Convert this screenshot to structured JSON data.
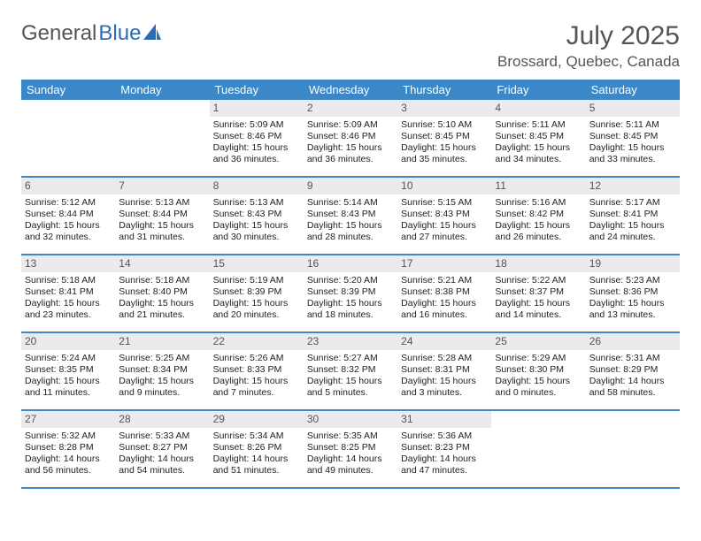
{
  "logo": {
    "text1": "General",
    "text2": "Blue"
  },
  "title": "July 2025",
  "location": "Brossard, Quebec, Canada",
  "colors": {
    "header_bg": "#3b87c8",
    "daynum_bg": "#ebebeb",
    "text": "#555555"
  },
  "weekdays": [
    "Sunday",
    "Monday",
    "Tuesday",
    "Wednesday",
    "Thursday",
    "Friday",
    "Saturday"
  ],
  "weeks": [
    [
      {
        "n": "",
        "sr": "",
        "ss": "",
        "dl": ""
      },
      {
        "n": "",
        "sr": "",
        "ss": "",
        "dl": ""
      },
      {
        "n": "1",
        "sr": "5:09 AM",
        "ss": "8:46 PM",
        "dl": "15 hours and 36 minutes."
      },
      {
        "n": "2",
        "sr": "5:09 AM",
        "ss": "8:46 PM",
        "dl": "15 hours and 36 minutes."
      },
      {
        "n": "3",
        "sr": "5:10 AM",
        "ss": "8:45 PM",
        "dl": "15 hours and 35 minutes."
      },
      {
        "n": "4",
        "sr": "5:11 AM",
        "ss": "8:45 PM",
        "dl": "15 hours and 34 minutes."
      },
      {
        "n": "5",
        "sr": "5:11 AM",
        "ss": "8:45 PM",
        "dl": "15 hours and 33 minutes."
      }
    ],
    [
      {
        "n": "6",
        "sr": "5:12 AM",
        "ss": "8:44 PM",
        "dl": "15 hours and 32 minutes."
      },
      {
        "n": "7",
        "sr": "5:13 AM",
        "ss": "8:44 PM",
        "dl": "15 hours and 31 minutes."
      },
      {
        "n": "8",
        "sr": "5:13 AM",
        "ss": "8:43 PM",
        "dl": "15 hours and 30 minutes."
      },
      {
        "n": "9",
        "sr": "5:14 AM",
        "ss": "8:43 PM",
        "dl": "15 hours and 28 minutes."
      },
      {
        "n": "10",
        "sr": "5:15 AM",
        "ss": "8:43 PM",
        "dl": "15 hours and 27 minutes."
      },
      {
        "n": "11",
        "sr": "5:16 AM",
        "ss": "8:42 PM",
        "dl": "15 hours and 26 minutes."
      },
      {
        "n": "12",
        "sr": "5:17 AM",
        "ss": "8:41 PM",
        "dl": "15 hours and 24 minutes."
      }
    ],
    [
      {
        "n": "13",
        "sr": "5:18 AM",
        "ss": "8:41 PM",
        "dl": "15 hours and 23 minutes."
      },
      {
        "n": "14",
        "sr": "5:18 AM",
        "ss": "8:40 PM",
        "dl": "15 hours and 21 minutes."
      },
      {
        "n": "15",
        "sr": "5:19 AM",
        "ss": "8:39 PM",
        "dl": "15 hours and 20 minutes."
      },
      {
        "n": "16",
        "sr": "5:20 AM",
        "ss": "8:39 PM",
        "dl": "15 hours and 18 minutes."
      },
      {
        "n": "17",
        "sr": "5:21 AM",
        "ss": "8:38 PM",
        "dl": "15 hours and 16 minutes."
      },
      {
        "n": "18",
        "sr": "5:22 AM",
        "ss": "8:37 PM",
        "dl": "15 hours and 14 minutes."
      },
      {
        "n": "19",
        "sr": "5:23 AM",
        "ss": "8:36 PM",
        "dl": "15 hours and 13 minutes."
      }
    ],
    [
      {
        "n": "20",
        "sr": "5:24 AM",
        "ss": "8:35 PM",
        "dl": "15 hours and 11 minutes."
      },
      {
        "n": "21",
        "sr": "5:25 AM",
        "ss": "8:34 PM",
        "dl": "15 hours and 9 minutes."
      },
      {
        "n": "22",
        "sr": "5:26 AM",
        "ss": "8:33 PM",
        "dl": "15 hours and 7 minutes."
      },
      {
        "n": "23",
        "sr": "5:27 AM",
        "ss": "8:32 PM",
        "dl": "15 hours and 5 minutes."
      },
      {
        "n": "24",
        "sr": "5:28 AM",
        "ss": "8:31 PM",
        "dl": "15 hours and 3 minutes."
      },
      {
        "n": "25",
        "sr": "5:29 AM",
        "ss": "8:30 PM",
        "dl": "15 hours and 0 minutes."
      },
      {
        "n": "26",
        "sr": "5:31 AM",
        "ss": "8:29 PM",
        "dl": "14 hours and 58 minutes."
      }
    ],
    [
      {
        "n": "27",
        "sr": "5:32 AM",
        "ss": "8:28 PM",
        "dl": "14 hours and 56 minutes."
      },
      {
        "n": "28",
        "sr": "5:33 AM",
        "ss": "8:27 PM",
        "dl": "14 hours and 54 minutes."
      },
      {
        "n": "29",
        "sr": "5:34 AM",
        "ss": "8:26 PM",
        "dl": "14 hours and 51 minutes."
      },
      {
        "n": "30",
        "sr": "5:35 AM",
        "ss": "8:25 PM",
        "dl": "14 hours and 49 minutes."
      },
      {
        "n": "31",
        "sr": "5:36 AM",
        "ss": "8:23 PM",
        "dl": "14 hours and 47 minutes."
      },
      {
        "n": "",
        "sr": "",
        "ss": "",
        "dl": ""
      },
      {
        "n": "",
        "sr": "",
        "ss": "",
        "dl": ""
      }
    ]
  ],
  "labels": {
    "sunrise": "Sunrise: ",
    "sunset": "Sunset: ",
    "daylight": "Daylight: "
  }
}
